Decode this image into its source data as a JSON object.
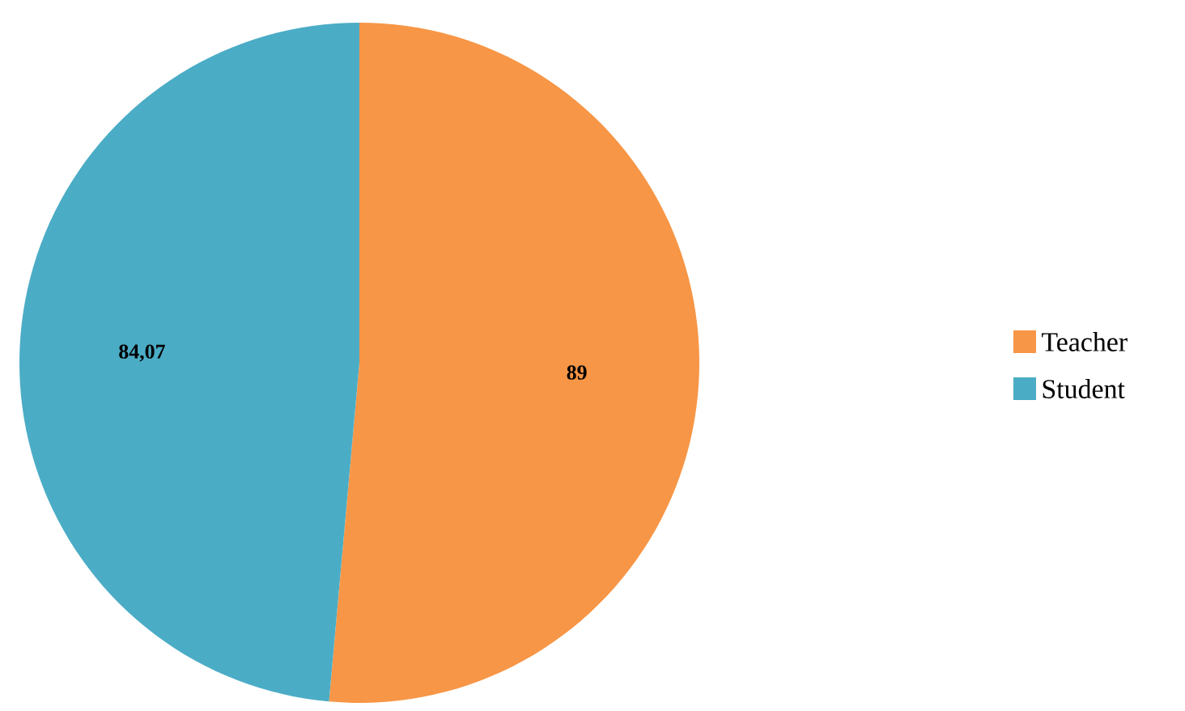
{
  "chart_data": {
    "type": "pie",
    "categories": [
      "Teacher",
      "Student"
    ],
    "values": [
      89,
      84.07
    ],
    "colors": [
      "#f79646",
      "#4bacc6"
    ],
    "value_labels": [
      "89",
      "84,07"
    ],
    "legend": "right"
  }
}
